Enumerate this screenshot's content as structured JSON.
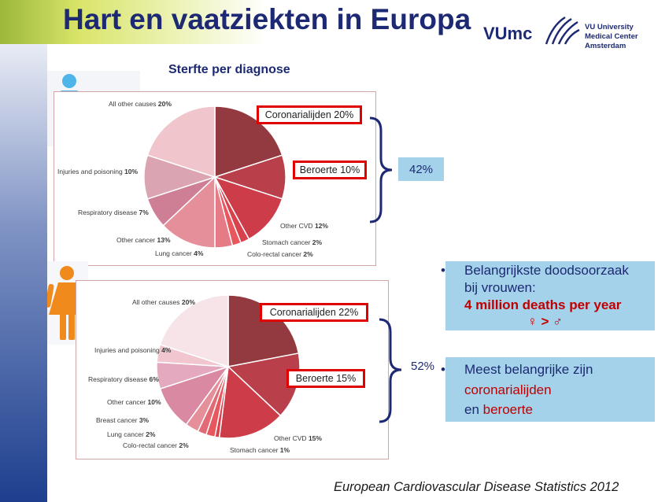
{
  "slide": {
    "title": "Hart en vaatziekten in Europa",
    "subtitle": "Sterfte per diagnose",
    "footer": "European Cardiovascular Disease Statistics 2012"
  },
  "logo": {
    "mark": "VUmc",
    "line1": "VU University",
    "line2": "Medical Center",
    "line3": "Amsterdam"
  },
  "men": {
    "icon": "male-person-icon",
    "icon_color": "#4fb5e8",
    "callouts": {
      "coronary": "Coronarialijden 20%",
      "stroke": "Beroerte 10%",
      "sum": "42%"
    },
    "labels": [
      {
        "name": "All other causes",
        "value": "20%"
      },
      {
        "name": "Injuries and poisoning",
        "value": "10%"
      },
      {
        "name": "Respiratory disease",
        "value": "7%"
      },
      {
        "name": "Other cancer",
        "value": "13%"
      },
      {
        "name": "Lung cancer",
        "value": "4%"
      },
      {
        "name": "Colo-rectal cancer",
        "value": "2%"
      },
      {
        "name": "Stomach cancer",
        "value": "2%"
      },
      {
        "name": "Other CVD",
        "value": "12%"
      }
    ]
  },
  "women": {
    "icon": "female-person-icon",
    "icon_color": "#f08a1c",
    "callouts": {
      "coronary": "Coronarialijden 22%",
      "stroke": "Beroerte 15%",
      "sum": "52%"
    },
    "labels": [
      {
        "name": "All other causes",
        "value": "20%"
      },
      {
        "name": "Injuries and poisoning",
        "value": "4%"
      },
      {
        "name": "Respiratory disease",
        "value": "6%"
      },
      {
        "name": "Other cancer",
        "value": "10%"
      },
      {
        "name": "Breast cancer",
        "value": "3%"
      },
      {
        "name": "Lung cancer",
        "value": "2%"
      },
      {
        "name": "Colo-rectal cancer",
        "value": "2%"
      },
      {
        "name": "Stomach cancer",
        "value": "1%"
      },
      {
        "name": "Other CVD",
        "value": "15%"
      }
    ]
  },
  "bullets": {
    "b1_line1": "Belangrijkste doodsoorzaak",
    "b1_line2": "bij vrouwen:",
    "b1_line3": "4 million deaths per year",
    "b1_line4": "♀ > ♂",
    "b2_line1": "Meest belangrijke zijn",
    "b2_line2": "coronarialijden",
    "b2_line3_prefix": "en ",
    "b2_line3_red": "beroerte"
  },
  "colors": {
    "title": "#1d2a73",
    "callout_border": "#e00000",
    "bullet_bg": "#a4d2ea",
    "highlight_red": "#c00000"
  },
  "chart_data": [
    {
      "type": "pie",
      "title": "",
      "categories": [
        "Coronary heart disease",
        "Stroke",
        "Other CVD",
        "Stomach cancer",
        "Colo-rectal cancer",
        "Lung cancer",
        "Other cancer",
        "Respiratory disease",
        "Injuries and poisoning",
        "All other causes"
      ],
      "values": [
        20,
        10,
        12,
        2,
        2,
        4,
        13,
        7,
        10,
        20
      ],
      "colors": [
        "#923a3f",
        "#b9404a",
        "#cc3c49",
        "#d9424d",
        "#e8575d",
        "#e57b86",
        "#e58f9a",
        "#cf7f95",
        "#dba4b2",
        "#f0c5cb"
      ]
    },
    {
      "type": "pie",
      "title": "",
      "categories": [
        "Coronary heart disease",
        "Stroke",
        "Other CVD",
        "Stomach cancer",
        "Colo-rectal cancer",
        "Lung cancer",
        "Breast cancer",
        "Other cancer",
        "Respiratory disease",
        "Injuries and poisoning",
        "All other causes"
      ],
      "values": [
        22,
        15,
        15,
        1,
        2,
        2,
        3,
        10,
        6,
        4,
        20
      ],
      "colors": [
        "#923a3f",
        "#b9404a",
        "#cc3c49",
        "#d9424d",
        "#e8575d",
        "#e26a76",
        "#e58f9a",
        "#d98aa2",
        "#e4a8bf",
        "#f1c6cf",
        "#f7e4e8"
      ]
    }
  ]
}
